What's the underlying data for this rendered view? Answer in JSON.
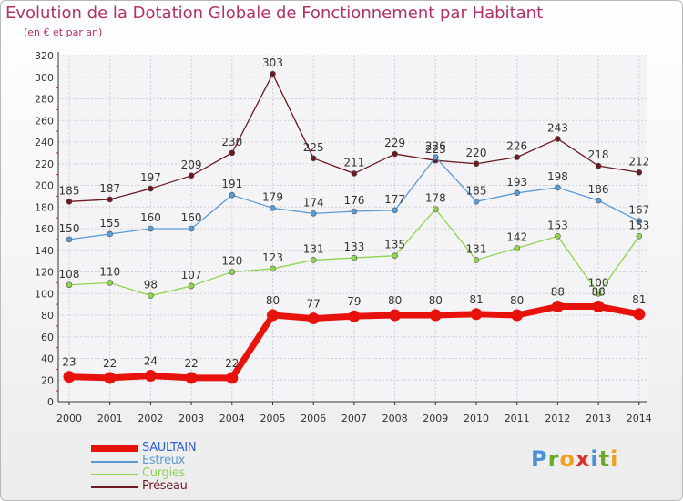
{
  "title": "Evolution de la Dotation Globale de Fonctionnement par Habitant",
  "subtitle": "(en € et par an)",
  "logo": {
    "letters": [
      "P",
      "r",
      "o",
      "x",
      "i",
      "t",
      "i"
    ],
    "colors": [
      "#4a90d9",
      "#6aaa2a",
      "#f0a020",
      "#d9302a",
      "#4a90d9",
      "#6aaa2a",
      "#f0a020"
    ]
  },
  "chart_data": {
    "type": "line",
    "title": "Evolution de la Dotation Globale de Fonctionnement par Habitant",
    "subtitle": "(en € et par an)",
    "x": [
      "2000",
      "2001",
      "2002",
      "2003",
      "2004",
      "2005",
      "2006",
      "2007",
      "2008",
      "2009",
      "2010",
      "2011",
      "2012",
      "2013",
      "2014"
    ],
    "ylim": [
      0,
      320
    ],
    "yticks": [
      "0",
      "20",
      "40",
      "60",
      "80",
      "100",
      "120",
      "140",
      "160",
      "180",
      "200",
      "220",
      "240",
      "260",
      "280",
      "300",
      "320"
    ],
    "grid": true,
    "legend_position": "bottom-left",
    "series": [
      {
        "name": "SAULTAIN",
        "color": "#e8120c",
        "values": [
          23,
          22,
          24,
          22,
          22,
          80,
          77,
          79,
          80,
          80,
          81,
          80,
          88,
          88,
          81
        ],
        "labels": [
          "23",
          "22",
          "24",
          "22",
          "22",
          "80",
          "77",
          "79",
          "80",
          "80",
          "81",
          "80",
          "88",
          "88",
          "81"
        ]
      },
      {
        "name": "Estreux",
        "color": "#5b9bd5",
        "values": [
          150,
          155,
          160,
          160,
          191,
          179,
          174,
          176,
          177,
          226,
          185,
          193,
          198,
          186,
          167
        ],
        "labels": [
          "150",
          "155",
          "160",
          "160",
          "191",
          "179",
          "174",
          "176",
          "177",
          "226",
          "185",
          "193",
          "198",
          "186",
          "167"
        ]
      },
      {
        "name": "Curgies",
        "color": "#8fd450",
        "values": [
          108,
          110,
          98,
          107,
          120,
          123,
          131,
          133,
          135,
          178,
          131,
          142,
          153,
          100,
          153
        ],
        "labels": [
          "108",
          "110",
          "98",
          "107",
          "120",
          "123",
          "131",
          "133",
          "135",
          "178",
          "131",
          "142",
          "153",
          "100",
          "153"
        ]
      },
      {
        "name": "Préseau",
        "color": "#6b1a22",
        "values": [
          185,
          187,
          197,
          209,
          230,
          303,
          225,
          211,
          229,
          223,
          220,
          226,
          243,
          218,
          212
        ],
        "labels": [
          "185",
          "187",
          "197",
          "209",
          "230",
          "303",
          "225",
          "211",
          "229",
          "223",
          "220",
          "226",
          "243",
          "218",
          "212"
        ]
      }
    ]
  }
}
